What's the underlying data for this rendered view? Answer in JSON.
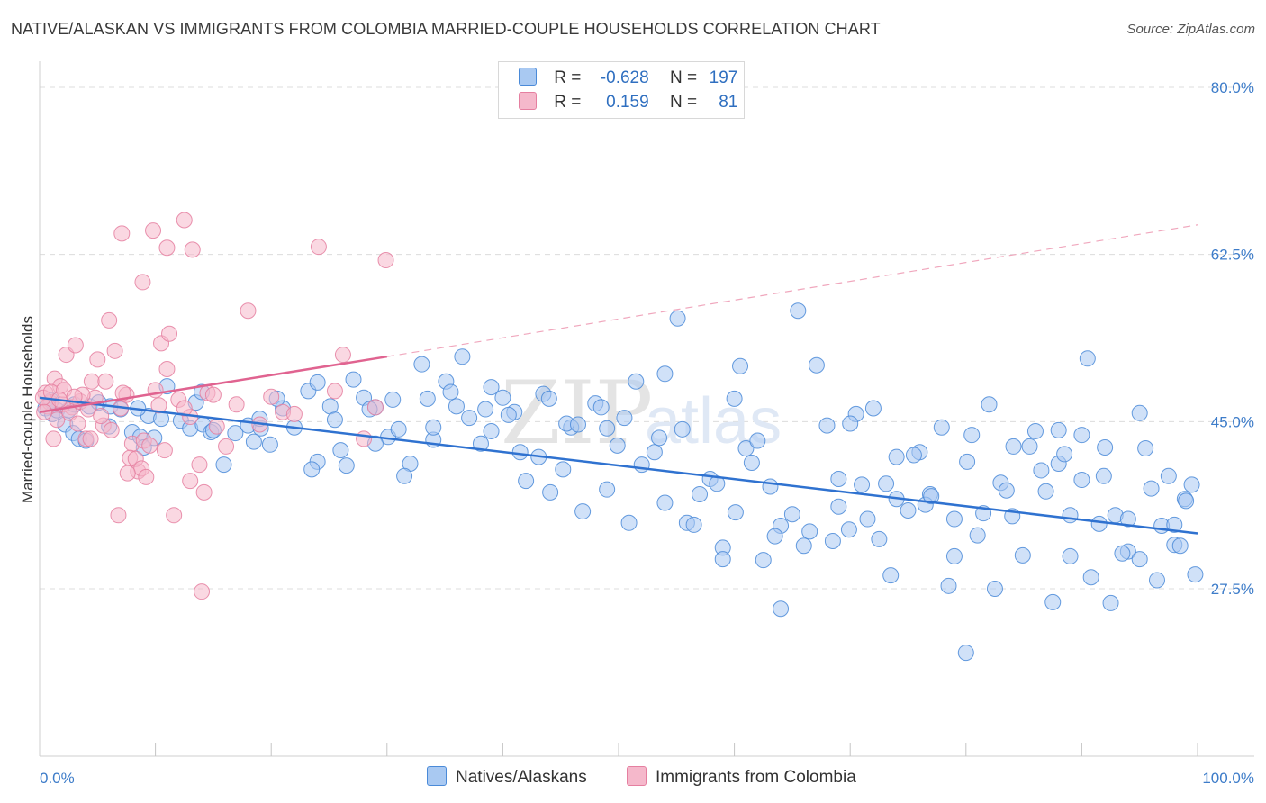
{
  "header": {
    "title": "NATIVE/ALASKAN VS IMMIGRANTS FROM COLOMBIA MARRIED-COUPLE HOUSEHOLDS CORRELATION CHART",
    "source": "Source: ZipAtlas.com"
  },
  "legend": {
    "rows": [
      {
        "r_label": "R =",
        "r_value": "-0.628",
        "n_label": "N =",
        "n_value": "197",
        "color": "#a9c9f2"
      },
      {
        "r_label": "R =",
        "r_value": "0.159",
        "n_label": "N =",
        "n_value": "81",
        "color": "#f5b8cb"
      }
    ]
  },
  "bottom_legend": {
    "items": [
      {
        "label": "Natives/Alaskans",
        "color": "#a9c9f2"
      },
      {
        "label": "Immigrants from Colombia",
        "color": "#f5b8cb"
      }
    ]
  },
  "watermark": {
    "zip": "ZIP",
    "atlas": "atlas"
  },
  "chart_data": {
    "type": "scatter",
    "title": "NATIVE/ALASKAN VS IMMIGRANTS FROM COLOMBIA MARRIED-COUPLE HOUSEHOLDS CORRELATION CHART",
    "xlabel": "",
    "ylabel": "Married-couple Households",
    "xlim": [
      0,
      100
    ],
    "ylim": [
      10,
      83
    ],
    "x_tick_labels": [
      {
        "value": 0,
        "label": "0.0%"
      },
      {
        "value": 100,
        "label": "100.0%"
      }
    ],
    "y_tick_labels": [
      {
        "value": 27.5,
        "label": "27.5%"
      },
      {
        "value": 45.0,
        "label": "45.0%"
      },
      {
        "value": 62.5,
        "label": "62.5%"
      },
      {
        "value": 80.0,
        "label": "80.0%"
      }
    ],
    "grid": "horizontal-dashed",
    "legend_position": "top-center",
    "series": [
      {
        "name": "Natives/Alaskans",
        "color": "#4a8ad8",
        "fill": "#a9c9f2",
        "r": -0.628,
        "n": 197,
        "trend": {
          "x0": 0,
          "y0": 47.5,
          "x1": 100,
          "y1": 33.3,
          "style": "solid"
        },
        "points": [
          [
            0.5,
            46.4
          ],
          [
            1.1,
            45.8
          ],
          [
            1.5,
            46.2
          ],
          [
            2.2,
            44.7
          ],
          [
            2.9,
            43.8
          ],
          [
            3.4,
            43.2
          ],
          [
            4.3,
            46.6
          ],
          [
            5.1,
            47.0
          ],
          [
            6.1,
            46.6
          ],
          [
            7.0,
            46.3
          ],
          [
            8.0,
            43.9
          ],
          [
            8.7,
            43.4
          ],
          [
            9.4,
            45.6
          ],
          [
            9.9,
            43.3
          ],
          [
            11.0,
            48.7
          ],
          [
            12.2,
            45.1
          ],
          [
            13.0,
            44.3
          ],
          [
            14.1,
            44.7
          ],
          [
            14.8,
            43.9
          ],
          [
            15.9,
            40.5
          ],
          [
            16.9,
            43.8
          ],
          [
            18.0,
            44.6
          ],
          [
            19.1,
            44.3
          ],
          [
            19.9,
            42.6
          ],
          [
            21.0,
            46.4
          ],
          [
            22.0,
            44.4
          ],
          [
            23.2,
            48.2
          ],
          [
            24.0,
            40.8
          ],
          [
            25.1,
            46.6
          ],
          [
            26.0,
            42.0
          ],
          [
            27.1,
            49.4
          ],
          [
            28.0,
            47.5
          ],
          [
            29.0,
            46.5
          ],
          [
            30.1,
            43.4
          ],
          [
            31.0,
            44.2
          ],
          [
            32.0,
            40.6
          ],
          [
            33.0,
            51.0
          ],
          [
            34.0,
            43.1
          ],
          [
            35.1,
            49.2
          ],
          [
            36.0,
            46.6
          ],
          [
            37.1,
            45.4
          ],
          [
            38.1,
            42.7
          ],
          [
            39.0,
            48.6
          ],
          [
            40.0,
            47.5
          ],
          [
            41.0,
            46.0
          ],
          [
            42.0,
            38.8
          ],
          [
            43.1,
            41.3
          ],
          [
            44.1,
            37.6
          ],
          [
            45.2,
            40.0
          ],
          [
            45.9,
            44.4
          ],
          [
            46.9,
            35.6
          ],
          [
            48.0,
            46.9
          ],
          [
            49.0,
            37.9
          ],
          [
            49.9,
            42.5
          ],
          [
            50.9,
            34.4
          ],
          [
            52.0,
            40.5
          ],
          [
            53.1,
            41.8
          ],
          [
            54.0,
            36.5
          ],
          [
            55.1,
            55.8
          ],
          [
            55.9,
            34.4
          ],
          [
            57.0,
            37.4
          ],
          [
            57.9,
            39.0
          ],
          [
            59.0,
            31.8
          ],
          [
            60.1,
            35.5
          ],
          [
            61.0,
            42.2
          ],
          [
            62.0,
            43.0
          ],
          [
            63.1,
            38.2
          ],
          [
            64.0,
            34.1
          ],
          [
            65.0,
            35.3
          ],
          [
            66.0,
            32.0
          ],
          [
            67.1,
            50.9
          ],
          [
            68.0,
            44.6
          ],
          [
            69.0,
            36.1
          ],
          [
            69.9,
            33.7
          ],
          [
            71.0,
            38.4
          ],
          [
            72.0,
            46.4
          ],
          [
            73.1,
            38.5
          ],
          [
            74.0,
            41.3
          ],
          [
            75.0,
            35.7
          ],
          [
            76.0,
            41.8
          ],
          [
            76.9,
            37.4
          ],
          [
            77.9,
            44.4
          ],
          [
            79.0,
            34.8
          ],
          [
            80.1,
            40.8
          ],
          [
            81.0,
            33.1
          ],
          [
            82.0,
            46.8
          ],
          [
            83.0,
            38.6
          ],
          [
            84.1,
            42.4
          ],
          [
            84.9,
            31.0
          ],
          [
            86.0,
            44.0
          ],
          [
            86.9,
            37.7
          ],
          [
            88.0,
            40.6
          ],
          [
            89.0,
            35.2
          ],
          [
            90.0,
            43.6
          ],
          [
            90.8,
            28.7
          ],
          [
            91.9,
            39.3
          ],
          [
            92.9,
            35.2
          ],
          [
            94.0,
            31.4
          ],
          [
            95.0,
            30.6
          ],
          [
            96.0,
            38.0
          ],
          [
            96.9,
            34.1
          ],
          [
            98.0,
            32.1
          ],
          [
            98.9,
            36.9
          ],
          [
            99.5,
            38.4
          ],
          [
            99.8,
            29.0
          ],
          [
            2.5,
            46.2
          ],
          [
            6.0,
            44.5
          ],
          [
            10.5,
            45.3
          ],
          [
            15.0,
            44.1
          ],
          [
            20.5,
            47.4
          ],
          [
            25.5,
            45.2
          ],
          [
            30.5,
            47.3
          ],
          [
            35.5,
            48.1
          ],
          [
            40.5,
            45.7
          ],
          [
            45.5,
            44.8
          ],
          [
            50.5,
            45.4
          ],
          [
            55.5,
            44.2
          ],
          [
            60.5,
            50.8
          ],
          [
            65.5,
            56.6
          ],
          [
            70.5,
            45.8
          ],
          [
            75.5,
            41.5
          ],
          [
            80.5,
            43.6
          ],
          [
            85.5,
            42.4
          ],
          [
            90.5,
            51.6
          ],
          [
            95.5,
            42.2
          ],
          [
            3.0,
            46.8
          ],
          [
            8.5,
            46.4
          ],
          [
            13.5,
            47.0
          ],
          [
            18.5,
            42.9
          ],
          [
            23.5,
            40.0
          ],
          [
            28.5,
            46.3
          ],
          [
            33.5,
            47.4
          ],
          [
            38.5,
            46.3
          ],
          [
            43.5,
            47.9
          ],
          [
            48.5,
            46.5
          ],
          [
            53.5,
            43.3
          ],
          [
            58.5,
            38.5
          ],
          [
            63.5,
            33.0
          ],
          [
            68.5,
            32.5
          ],
          [
            73.5,
            28.9
          ],
          [
            78.5,
            27.8
          ],
          [
            83.5,
            37.8
          ],
          [
            88.5,
            41.6
          ],
          [
            93.5,
            31.2
          ],
          [
            98.5,
            32.0
          ],
          [
            4.0,
            43.0
          ],
          [
            9.0,
            42.3
          ],
          [
            14.0,
            48.1
          ],
          [
            19.0,
            45.3
          ],
          [
            24.0,
            49.1
          ],
          [
            29.0,
            42.7
          ],
          [
            34.0,
            44.4
          ],
          [
            39.0,
            44.0
          ],
          [
            44.0,
            47.4
          ],
          [
            49.0,
            44.3
          ],
          [
            54.0,
            50.0
          ],
          [
            59.0,
            30.6
          ],
          [
            64.0,
            25.4
          ],
          [
            69.0,
            39.0
          ],
          [
            74.0,
            36.9
          ],
          [
            79.0,
            30.9
          ],
          [
            84.0,
            35.1
          ],
          [
            89.0,
            30.9
          ],
          [
            94.0,
            34.8
          ],
          [
            99.0,
            36.7
          ],
          [
            1.0,
            47.2
          ],
          [
            26.5,
            40.4
          ],
          [
            31.5,
            39.3
          ],
          [
            41.5,
            41.8
          ],
          [
            46.5,
            44.7
          ],
          [
            51.5,
            49.2
          ],
          [
            56.5,
            34.2
          ],
          [
            61.5,
            40.7
          ],
          [
            66.5,
            33.5
          ],
          [
            71.5,
            34.8
          ],
          [
            76.5,
            36.3
          ],
          [
            81.5,
            35.4
          ],
          [
            86.5,
            39.9
          ],
          [
            91.5,
            34.3
          ],
          [
            96.5,
            28.4
          ],
          [
            36.5,
            51.8
          ],
          [
            62.5,
            30.5
          ],
          [
            72.5,
            32.7
          ],
          [
            82.5,
            27.5
          ],
          [
            87.5,
            26.1
          ],
          [
            92.5,
            26.0
          ],
          [
            60.0,
            47.4
          ],
          [
            70.0,
            44.8
          ],
          [
            80.0,
            20.8
          ],
          [
            88.0,
            44.1
          ],
          [
            95.0,
            45.9
          ],
          [
            90.0,
            38.9
          ],
          [
            97.5,
            39.3
          ],
          [
            77.0,
            37.2
          ],
          [
            92.0,
            42.3
          ],
          [
            98.0,
            34.2
          ]
        ]
      },
      {
        "name": "Immigrants from Colombia",
        "color": "#e57fa0",
        "fill": "#f5b8cb",
        "r": 0.159,
        "n": 81,
        "trend": {
          "x0": 0,
          "y0": 46.0,
          "x1": 30,
          "y1": 51.8,
          "style": "solid"
        },
        "trend_extension": {
          "x0": 30,
          "y0": 51.8,
          "x1": 100,
          "y1": 65.6,
          "style": "dashed"
        },
        "points": [
          [
            0.5,
            48.0
          ],
          [
            0.9,
            47.0
          ],
          [
            1.3,
            49.5
          ],
          [
            1.8,
            48.7
          ],
          [
            2.3,
            52.0
          ],
          [
            2.8,
            46.5
          ],
          [
            3.1,
            53.0
          ],
          [
            3.5,
            47.1
          ],
          [
            4.0,
            43.2
          ],
          [
            4.5,
            49.2
          ],
          [
            5.0,
            51.5
          ],
          [
            5.5,
            44.6
          ],
          [
            6.0,
            55.6
          ],
          [
            6.5,
            52.4
          ],
          [
            7.0,
            46.4
          ],
          [
            7.5,
            47.8
          ],
          [
            8.0,
            42.7
          ],
          [
            8.5,
            39.8
          ],
          [
            9.0,
            43.0
          ],
          [
            9.5,
            42.5
          ],
          [
            10.0,
            48.3
          ],
          [
            10.5,
            53.2
          ],
          [
            11.0,
            50.5
          ],
          [
            11.6,
            35.2
          ],
          [
            12.0,
            47.3
          ],
          [
            13.0,
            45.5
          ],
          [
            13.8,
            40.5
          ],
          [
            14.5,
            48.0
          ],
          [
            15.0,
            47.8
          ],
          [
            16.1,
            42.4
          ],
          [
            17.0,
            46.8
          ],
          [
            18.0,
            56.6
          ],
          [
            19.0,
            44.7
          ],
          [
            20.0,
            47.6
          ],
          [
            21.0,
            46.0
          ],
          [
            22.0,
            45.8
          ],
          [
            24.1,
            63.3
          ],
          [
            25.5,
            48.2
          ],
          [
            26.2,
            52.0
          ],
          [
            28.0,
            43.2
          ],
          [
            29.0,
            46.5
          ],
          [
            29.9,
            61.9
          ],
          [
            0.7,
            46.6
          ],
          [
            1.5,
            45.2
          ],
          [
            2.0,
            46.8
          ],
          [
            2.6,
            45.9
          ],
          [
            3.3,
            44.8
          ],
          [
            4.2,
            46.3
          ],
          [
            4.8,
            47.5
          ],
          [
            5.3,
            45.6
          ],
          [
            6.2,
            44.1
          ],
          [
            7.2,
            48.0
          ],
          [
            7.8,
            41.2
          ],
          [
            8.3,
            41.1
          ],
          [
            8.8,
            40.1
          ],
          [
            9.2,
            39.2
          ],
          [
            10.3,
            46.7
          ],
          [
            11.2,
            54.2
          ],
          [
            12.5,
            46.4
          ],
          [
            14.2,
            37.6
          ],
          [
            15.3,
            44.5
          ],
          [
            13.0,
            38.8
          ],
          [
            7.6,
            39.6
          ],
          [
            6.8,
            35.2
          ],
          [
            10.8,
            42.0
          ],
          [
            9.8,
            65.0
          ],
          [
            8.9,
            59.6
          ],
          [
            7.1,
            64.7
          ],
          [
            12.5,
            66.1
          ],
          [
            11.0,
            63.2
          ],
          [
            13.2,
            63.0
          ],
          [
            14.0,
            27.2
          ],
          [
            1.2,
            43.2
          ],
          [
            3.7,
            47.8
          ],
          [
            5.7,
            49.2
          ],
          [
            4.4,
            43.2
          ],
          [
            0.3,
            47.5
          ],
          [
            1.0,
            48.1
          ],
          [
            2.1,
            48.3
          ],
          [
            3.0,
            47.6
          ],
          [
            0.4,
            46.0
          ],
          [
            1.7,
            47.3
          ]
        ]
      }
    ]
  }
}
